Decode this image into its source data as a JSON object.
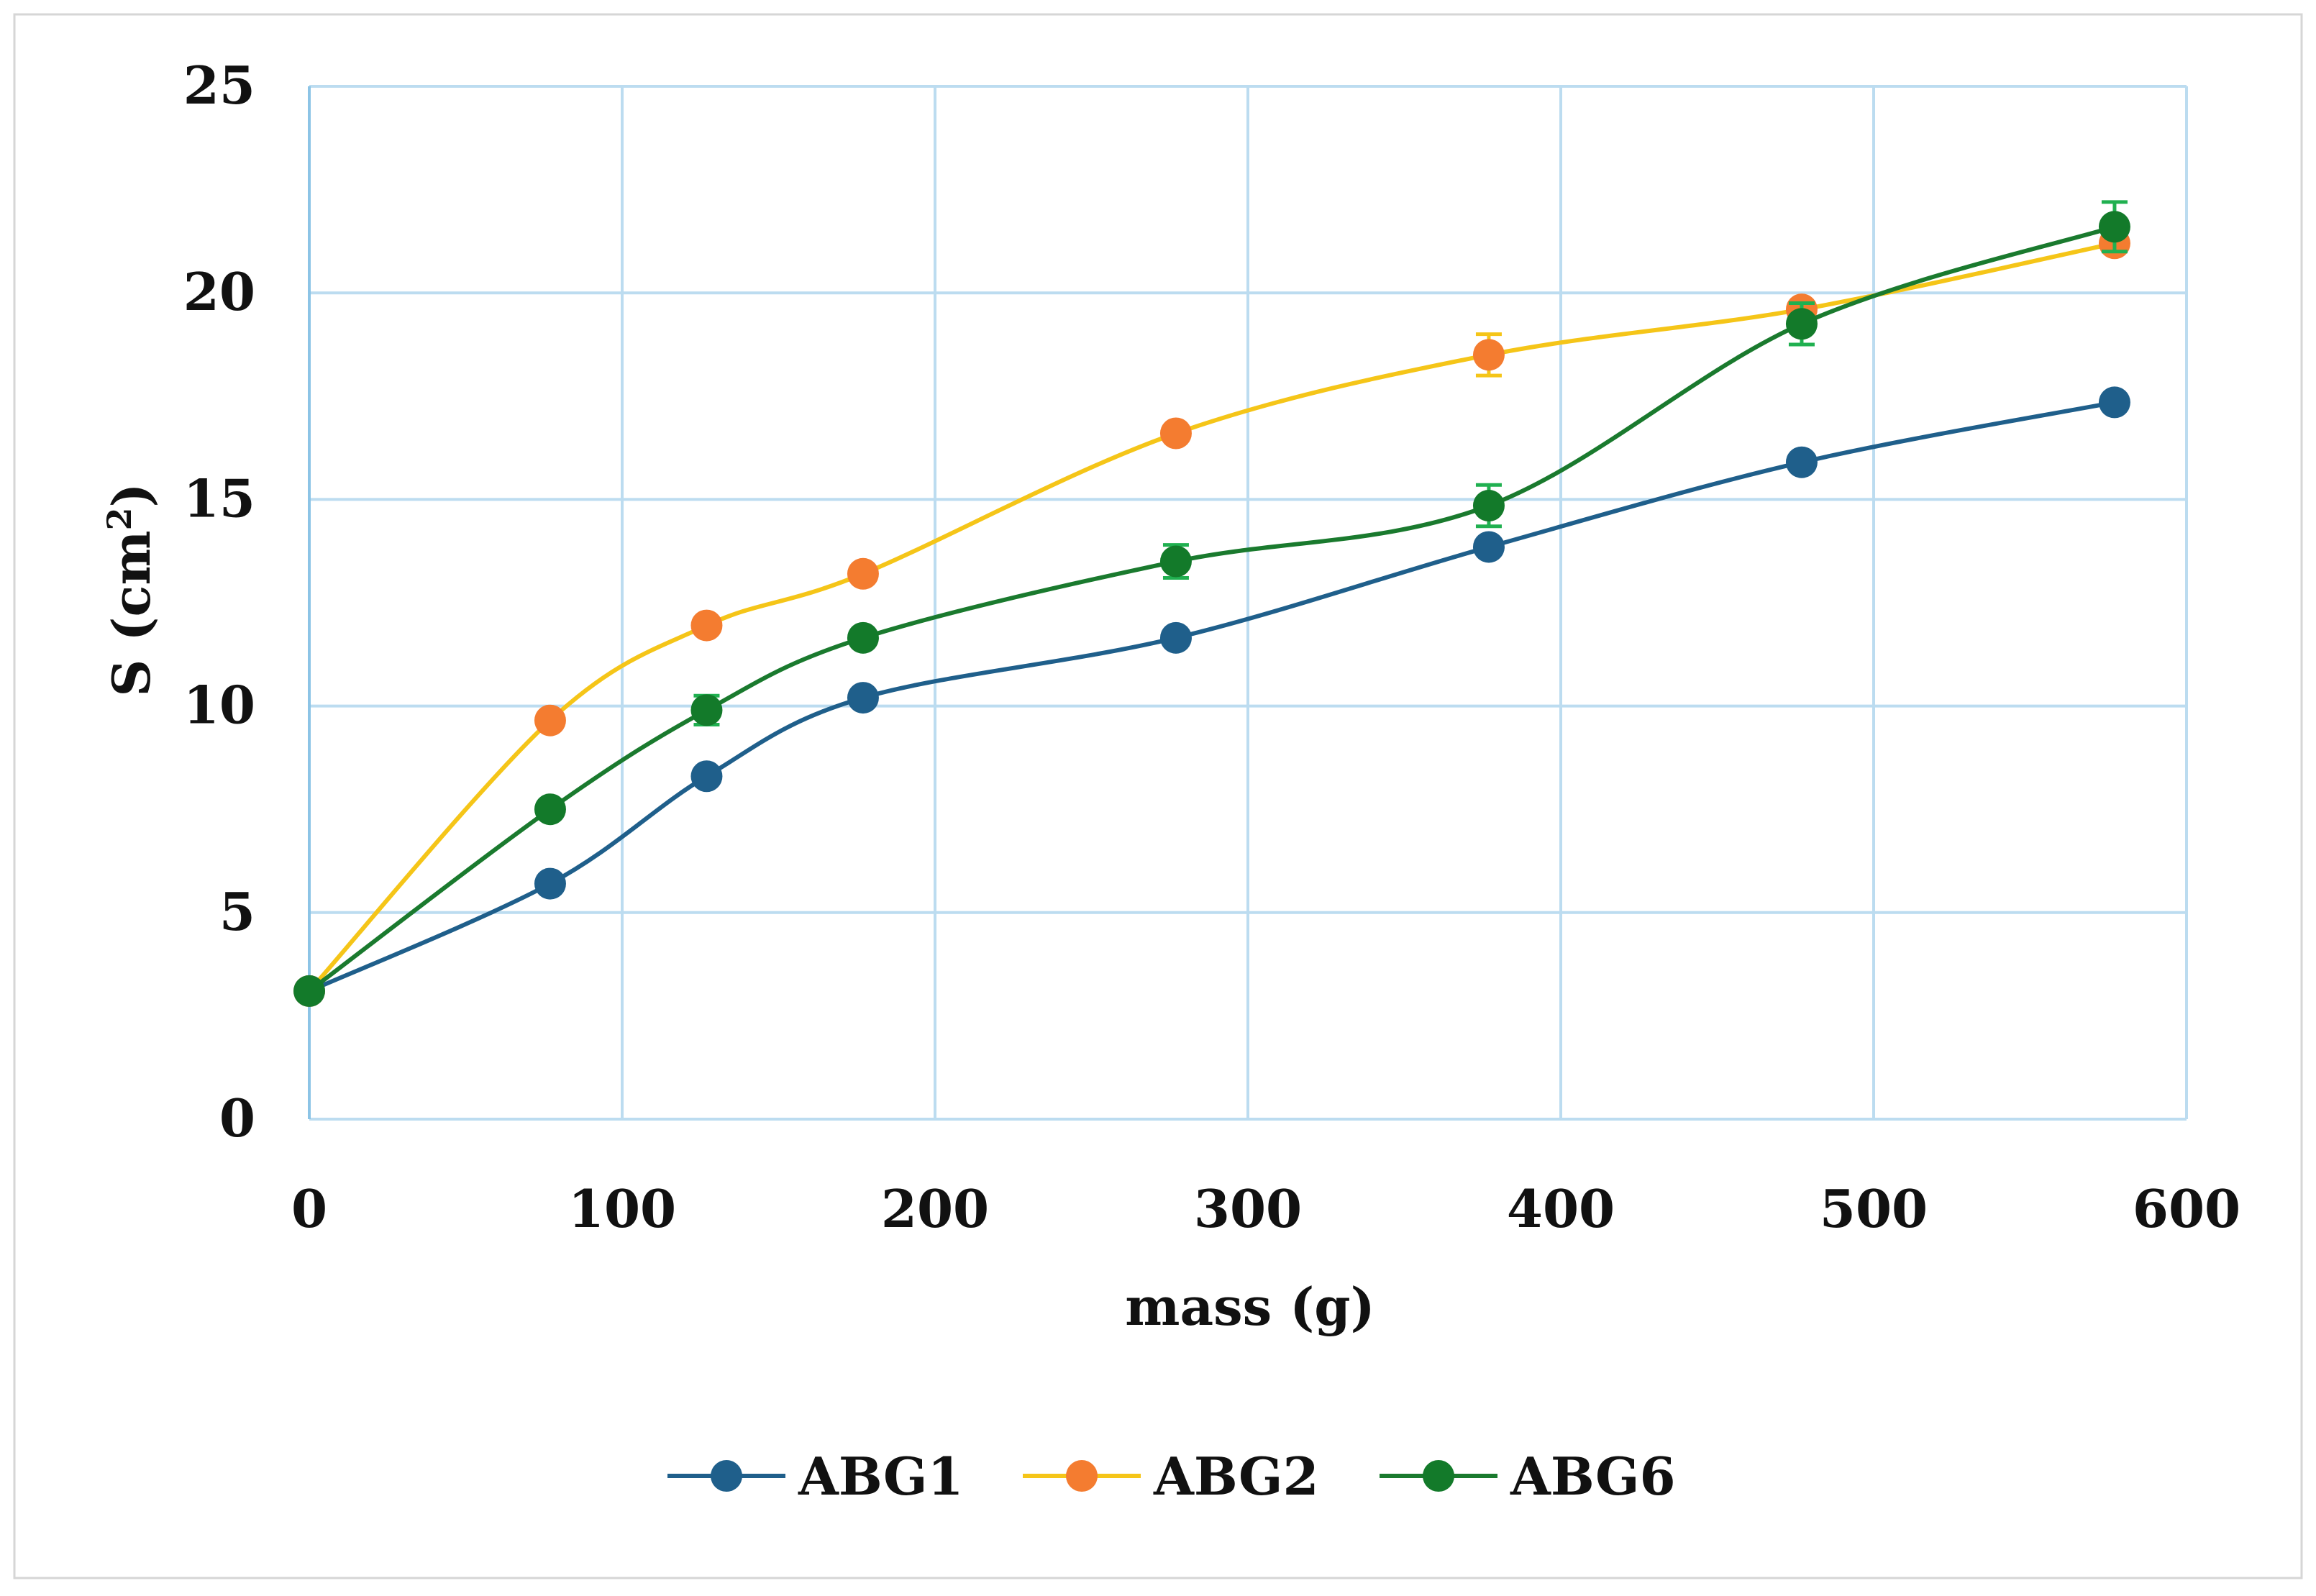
{
  "chart_data": {
    "type": "line",
    "title": "",
    "xlabel": "mass (g)",
    "ylabel": "S (cm",
    "ylabel_sup": "2",
    "ylabel_close": ")",
    "xlim": [
      0,
      600
    ],
    "ylim": [
      0,
      25
    ],
    "xticks": [
      0,
      100,
      200,
      300,
      400,
      500,
      600
    ],
    "yticks": [
      0,
      5,
      10,
      15,
      20,
      25
    ],
    "grid": true,
    "legend_position": "bottom",
    "x": [
      0,
      77,
      127,
      177,
      277,
      377,
      477,
      577
    ],
    "series": [
      {
        "name": "ABG1",
        "line_color": "#1f5f8b",
        "marker_color": "#1f5f8b",
        "values": [
          3.1,
          5.7,
          8.3,
          10.2,
          11.65,
          13.85,
          15.9,
          17.35
        ],
        "errors": [
          0,
          0,
          0,
          0,
          0,
          0,
          0,
          0
        ]
      },
      {
        "name": "ABG2",
        "line_color": "#f5c518",
        "marker_color": "#f47c30",
        "values": [
          3.1,
          9.65,
          11.95,
          13.2,
          16.6,
          18.5,
          19.6,
          21.2
        ],
        "errors": [
          0,
          0,
          0,
          0,
          0,
          0.5,
          0,
          0
        ]
      },
      {
        "name": "ABG6",
        "line_color": "#1a7a2e",
        "marker_color": "#137a2a",
        "errorbar_color": "#20b050",
        "values": [
          3.1,
          7.5,
          9.9,
          11.65,
          13.5,
          14.85,
          19.25,
          21.6
        ],
        "errors": [
          0,
          0,
          0.35,
          0,
          0.4,
          0.5,
          0.5,
          0.6
        ]
      }
    ]
  }
}
